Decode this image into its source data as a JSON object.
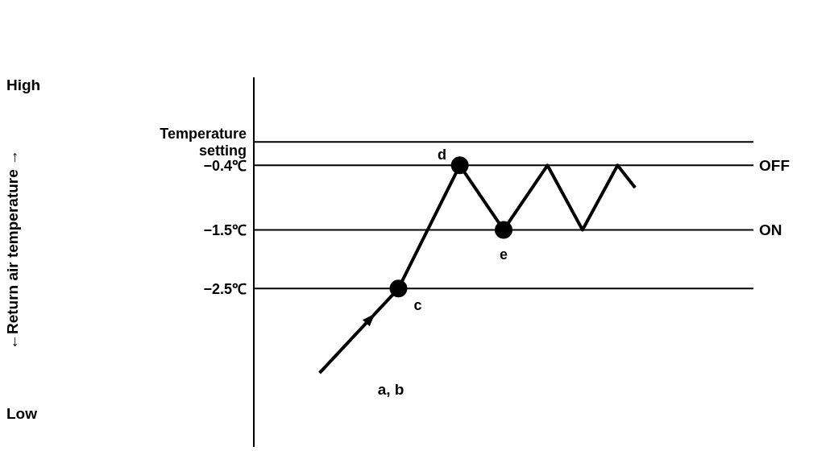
{
  "chart_data": {
    "type": "line",
    "categories": [
      null,
      null,
      null,
      null,
      null,
      null,
      null,
      null,
      null,
      null,
      null,
      null,
      null,
      null,
      null,
      null,
      null,
      null,
      null,
      null,
      null,
      null,
      null,
      null,
      null,
      null,
      null,
      null,
      null,
      null,
      null,
      null,
      null,
      null,
      null,
      null,
      null,
      null,
      null,
      null,
      null,
      null,
      null,
      null,
      null,
      null,
      null,
      null,
      null,
      null,
      null,
      null,
      null,
      null,
      null,
      null,
      null
    ],
    "ylim": [
      -5.2,
      1.1
    ],
    "yticks": [
      {
        "value": 0,
        "label": "Temperature setting"
      },
      {
        "value": -0.4,
        "label": "−0.4℃"
      },
      {
        "value": -1.5,
        "label": "−1.5℃"
      },
      {
        "value": -2.5,
        "label": "−2.5℃"
      }
    ],
    "series": [
      {
        "color": "#000000",
        "values": [
          null,
          null,
          null,
          null,
          null,
          null,
          null,
          -3.94,
          null,
          null,
          null,
          null,
          null,
          null,
          null,
          null,
          -2.5,
          null,
          null,
          null,
          null,
          null,
          null,
          -0.4,
          null,
          null,
          null,
          null,
          -1.5,
          null,
          null,
          null,
          null,
          -0.4,
          null,
          null,
          null,
          -1.5,
          null,
          null,
          null,
          -0.4,
          null,
          -0.78,
          null,
          null,
          null,
          null,
          null,
          null,
          null,
          null,
          null,
          null,
          null,
          null,
          null
        ]
      }
    ],
    "ref_lines": [
      {
        "axis": "y",
        "value": 0
      },
      {
        "axis": "y",
        "value": -0.4,
        "label": "OFF"
      },
      {
        "axis": "y",
        "value": -1.5,
        "label": "ON"
      },
      {
        "axis": "y",
        "value": -2.5
      }
    ],
    "annotations": [
      "High",
      "Low",
      "c",
      "d",
      "e",
      "a, b",
      "←Return air temperature →"
    ]
  }
}
